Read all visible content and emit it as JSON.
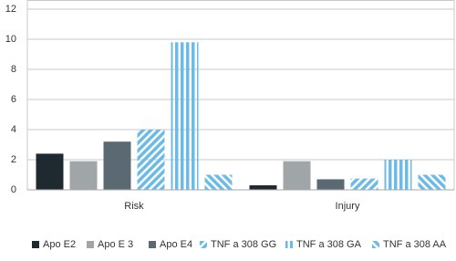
{
  "chart_data": {
    "type": "bar",
    "categories": [
      "Risk",
      "Injury"
    ],
    "series": [
      {
        "name": "Apo E2",
        "color": "#1f2a30",
        "pattern": "solid",
        "values": [
          2.4,
          0.3
        ]
      },
      {
        "name": "Apo E 3",
        "color": "#a0a6a8",
        "pattern": "solid",
        "values": [
          1.9,
          1.9
        ]
      },
      {
        "name": "Apo E4",
        "color": "#5b6a72",
        "pattern": "solid",
        "values": [
          3.2,
          0.7
        ]
      },
      {
        "name": "TNF a 308 GG",
        "color": "#6cbbe6",
        "pattern": "diagonal",
        "values": [
          4.0,
          0.75
        ]
      },
      {
        "name": "TNF a 308 GA",
        "color": "#6cbbe6",
        "pattern": "vertical",
        "values": [
          9.8,
          2.0
        ]
      },
      {
        "name": "TNF a 308 AA",
        "color": "#6cbbe6",
        "pattern": "antidiagonal",
        "values": [
          1.0,
          1.0
        ]
      }
    ],
    "ylim": [
      0,
      12
    ],
    "yticks": [
      0,
      2,
      4,
      6,
      8,
      10,
      12
    ],
    "grid": true,
    "legend": "bottom"
  }
}
